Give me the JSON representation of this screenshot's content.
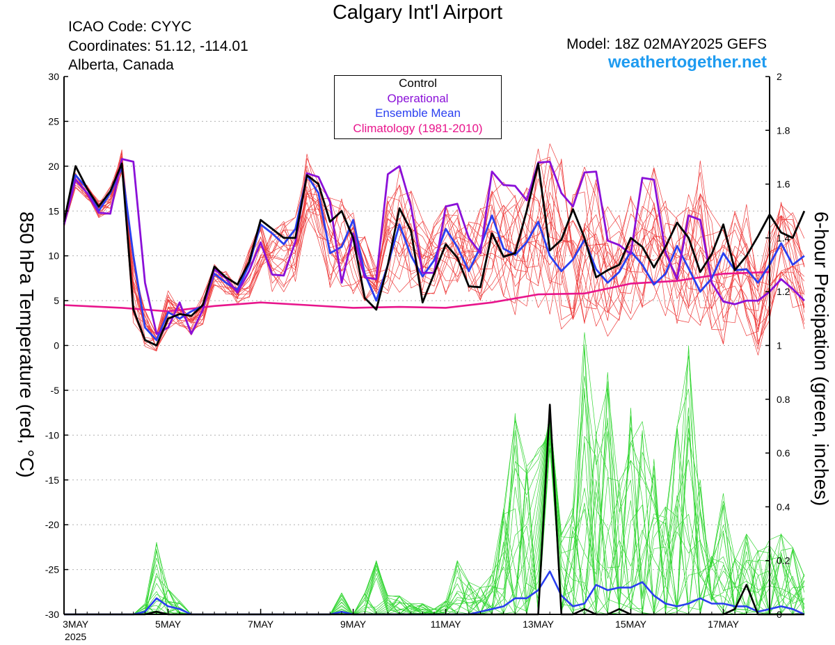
{
  "header": {
    "title": "Calgary Int'l Airport",
    "icao": "ICAO Code: CYYC",
    "coordinates": "Coordinates: 51.12, -114.01",
    "region": "Alberta, Canada",
    "model": "Model: 18Z 02MAY2025 GEFS",
    "site": "weathertogether.net"
  },
  "colors": {
    "ensemble_member": "#ee3a3a",
    "control": "#000000",
    "operational": "#8a10d8",
    "ensemble_mean": "#2a3ff0",
    "climatology": "#e8158c",
    "precip_member": "#33d633",
    "site_link": "#1e9bf0"
  },
  "legend": [
    {
      "label": "Control",
      "color": "#000000"
    },
    {
      "label": "Operational",
      "color": "#8a10d8"
    },
    {
      "label": "Ensemble Mean",
      "color": "#2a3ff0"
    },
    {
      "label": "Climatology (1981-2010)",
      "color": "#e8158c"
    }
  ],
  "chart_data": {
    "type": "line",
    "ylabel_left": "850 hPa Temperature (red, °C)",
    "ylabel_right": "6-hour Precipation (green, inches)",
    "ylim_left": [
      -30,
      30
    ],
    "ylim_right": [
      0,
      2
    ],
    "yticks_left": [
      "30",
      "25",
      "20",
      "15",
      "10",
      "5",
      "0",
      "-5",
      "-10",
      "-15",
      "-20",
      "-25",
      "-30"
    ],
    "yticks_right": [
      "2",
      "1.8",
      "1.6",
      "1.4",
      "1.2",
      "1",
      "0.8",
      "0.6",
      "0.4",
      "0.2",
      "0"
    ],
    "xlim_hours": [
      0,
      366
    ],
    "xticks": [
      {
        "hour": 6,
        "label": "3MAY",
        "sub": "2025"
      },
      {
        "hour": 54,
        "label": "5MAY"
      },
      {
        "hour": 102,
        "label": "7MAY"
      },
      {
        "hour": 150,
        "label": "9MAY"
      },
      {
        "hour": 198,
        "label": "11MAY"
      },
      {
        "hour": 246,
        "label": "13MAY"
      },
      {
        "hour": 294,
        "label": "15MAY"
      },
      {
        "hour": 342,
        "label": "17MAY"
      }
    ],
    "grid": "dotted horizontal",
    "series": [
      {
        "name": "Control",
        "axis": "left",
        "values": [
          13.8,
          20,
          17.5,
          15.5,
          17.2,
          20.3,
          4,
          0.6,
          0,
          3,
          3.5,
          3.3,
          4.5,
          8.8,
          7.6,
          6.8,
          9.3,
          14,
          13,
          12,
          12,
          19,
          18,
          13.8,
          15,
          12,
          5.3,
          4,
          9,
          15.3,
          12.8,
          4.8,
          8,
          11.3,
          9.8,
          6.6,
          6.5,
          12.5,
          9.9,
          10.3,
          15,
          20.3,
          10.6,
          11.8,
          15.2,
          12,
          7.6,
          8.4,
          9,
          12,
          11,
          8.7,
          11,
          13.7,
          12,
          8.2,
          10.2,
          13.5,
          8.4,
          10,
          12.2,
          14.6,
          12.6,
          12,
          15
        ]
      },
      {
        "name": "Operational",
        "axis": "left",
        "values": [
          13.5,
          18.5,
          17,
          14.8,
          14.7,
          20.8,
          20.5,
          7,
          1.3,
          2,
          4.8,
          1.3,
          4,
          8.5,
          7.5,
          5.9,
          8.3,
          11.5,
          7.9,
          7.8,
          11.6,
          19.2,
          18.8,
          16,
          7,
          12.5,
          7.6,
          7.4,
          19.1,
          20,
          15.5,
          8.1,
          8.1,
          15.5,
          15.8,
          12,
          10.3,
          19.4,
          17.9,
          17.8,
          16.2,
          20.4,
          20.5,
          17,
          15.5,
          19.3,
          19.4,
          11.7,
          11.2,
          10.2,
          18.7,
          18.5,
          10.4,
          7.4,
          14.5,
          14,
          7,
          4.9,
          4.6,
          5,
          5,
          6,
          7.4,
          6.3,
          5
        ]
      },
      {
        "name": "Ensemble Mean",
        "axis": "left",
        "values": [
          13.5,
          19,
          17.5,
          15,
          17,
          19.8,
          10,
          2,
          0.6,
          3.7,
          3,
          3.8,
          4.4,
          8,
          7,
          6.2,
          9,
          13.5,
          12.5,
          11.3,
          13,
          19,
          17,
          10.3,
          11,
          14,
          8,
          5,
          9,
          13.5,
          10,
          7.7,
          9.5,
          13,
          11,
          8.3,
          11,
          14.5,
          10.8,
          10.1,
          11.5,
          13.8,
          10,
          8.3,
          9.6,
          11.8,
          8.5,
          7,
          8.2,
          10.5,
          9,
          6.8,
          8,
          11.1,
          8.6,
          6,
          7.5,
          10.3,
          8.4,
          8.5,
          7,
          9,
          11.4,
          9,
          10
        ]
      },
      {
        "name": "Climatology (1981-2010)",
        "axis": "left",
        "points": [
          [
            0,
            4.5
          ],
          [
            30,
            4.2
          ],
          [
            54,
            3.8
          ],
          [
            78,
            4.4
          ],
          [
            102,
            4.8
          ],
          [
            126,
            4.5
          ],
          [
            150,
            4.2
          ],
          [
            174,
            4.3
          ],
          [
            198,
            4.2
          ],
          [
            222,
            4.8
          ],
          [
            246,
            5.7
          ],
          [
            270,
            5.8
          ],
          [
            294,
            6.9
          ],
          [
            318,
            7.2
          ],
          [
            342,
            8
          ],
          [
            366,
            8.2
          ]
        ]
      },
      {
        "name": "Control",
        "axis": "right",
        "values": [
          0,
          0,
          0,
          0,
          0,
          0,
          0,
          0,
          0.01,
          0,
          0,
          0,
          0,
          0,
          0,
          0,
          0,
          0,
          0,
          0,
          0,
          0,
          0,
          0,
          0,
          0,
          0,
          0,
          0,
          0,
          0,
          0,
          0,
          0,
          0,
          0,
          0,
          0,
          0,
          0,
          0,
          0,
          0.78,
          0,
          0,
          0.02,
          0,
          0,
          0.02,
          0,
          0,
          0,
          0,
          0,
          0,
          0,
          0,
          0,
          0.02,
          0.11,
          0,
          0,
          0,
          0,
          0
        ]
      },
      {
        "name": "Ensemble Mean",
        "axis": "right",
        "values": [
          0,
          0,
          0,
          0,
          0,
          0,
          0,
          0.01,
          0.06,
          0.03,
          0.02,
          0,
          0,
          0,
          0,
          0,
          0,
          0,
          0,
          0,
          0,
          0,
          0,
          0,
          0.01,
          0,
          0,
          0,
          0,
          0,
          0,
          0,
          0,
          0,
          0,
          0,
          0.01,
          0.02,
          0.03,
          0.06,
          0.06,
          0.09,
          0.16,
          0.07,
          0.03,
          0.04,
          0.11,
          0.09,
          0.1,
          0.1,
          0.12,
          0.07,
          0.04,
          0.03,
          0.04,
          0.06,
          0.04,
          0.04,
          0.03,
          0.03,
          0.01,
          0.02,
          0.03,
          0.02,
          0
        ]
      }
    ],
    "ensemble_temperature_envelope": {
      "axis": "left",
      "min": [
        13,
        17.5,
        16,
        14,
        14.5,
        19,
        2,
        -0.5,
        -1,
        1.5,
        2,
        1,
        2,
        6.5,
        5.5,
        4,
        5,
        6,
        5,
        5.5,
        6,
        12,
        11,
        5,
        5,
        5,
        4,
        5,
        5,
        5,
        5,
        4,
        5,
        5,
        4.5,
        4,
        4,
        5,
        4,
        1.5,
        3,
        3,
        1,
        0,
        -0.5,
        0,
        0,
        0,
        1,
        2,
        2,
        3.5,
        2,
        1,
        1,
        -1,
        0,
        -1.5,
        -2,
        -2,
        -2,
        -1,
        -1,
        0,
        1
      ],
      "max": [
        14,
        19.5,
        18,
        16.5,
        18,
        22,
        11,
        5,
        2,
        7,
        5,
        4,
        6,
        9.5,
        8.5,
        7.5,
        11,
        16,
        14.5,
        15,
        15,
        22,
        20,
        18,
        17,
        17,
        13,
        9,
        19,
        21,
        19,
        15,
        15,
        17,
        17,
        16,
        16,
        20,
        19,
        19,
        20,
        24,
        26,
        22,
        20,
        21,
        20,
        17,
        16,
        18,
        20,
        21,
        17,
        16,
        19,
        23,
        16,
        15,
        16,
        17,
        16,
        19,
        17,
        17,
        17
      ]
    },
    "ensemble_precip_envelope": {
      "axis": "right",
      "max": [
        0,
        0,
        0,
        0,
        0,
        0,
        0,
        0.04,
        0.27,
        0.1,
        0.05,
        0,
        0,
        0,
        0,
        0,
        0,
        0,
        0,
        0,
        0,
        0,
        0,
        0,
        0.08,
        0,
        0.08,
        0.2,
        0.07,
        0.07,
        0.04,
        0.04,
        0.02,
        0.05,
        0.2,
        0.12,
        0.1,
        0.15,
        0.4,
        0.75,
        0.55,
        0.62,
        0.77,
        0.3,
        0.4,
        1.05,
        0.68,
        0.9,
        0.5,
        0.78,
        0.72,
        0.62,
        0.4,
        0.7,
        1.0,
        0.5,
        0.35,
        0.45,
        0.22,
        0.3,
        0.24,
        0.3,
        0.3,
        0.25,
        0.15
      ]
    }
  }
}
